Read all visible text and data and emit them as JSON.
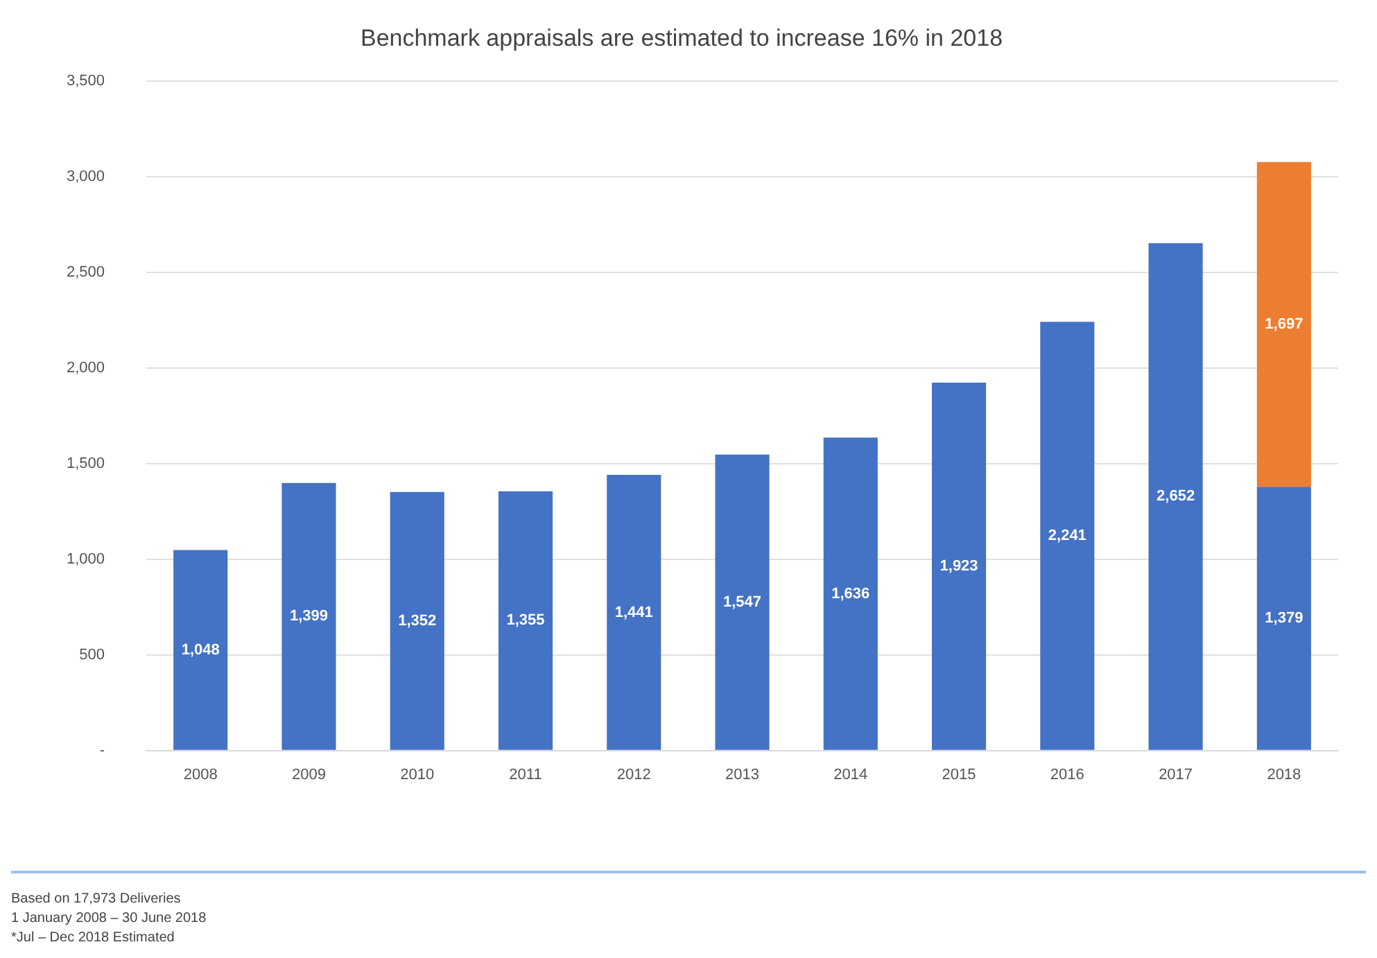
{
  "chart_data": {
    "type": "bar",
    "title": "Benchmark appraisals are estimated to increase 16% in 2018",
    "categories": [
      "2008",
      "2009",
      "2010",
      "2011",
      "2012",
      "2013",
      "2014",
      "2015",
      "2016",
      "2017",
      "2018"
    ],
    "series": [
      {
        "color": "#4472c4",
        "values": [
          1048,
          1399,
          1352,
          1355,
          1441,
          1547,
          1636,
          1923,
          2241,
          2652,
          1379
        ],
        "value_labels": [
          "1,048",
          "1,399",
          "1,352",
          "1,355",
          "1,441",
          "1,547",
          "1,636",
          "1,923",
          "2,241",
          "2,652",
          "1,379"
        ]
      },
      {
        "color": "#ed7d31",
        "values": [
          null,
          null,
          null,
          null,
          null,
          null,
          null,
          null,
          null,
          null,
          1697
        ],
        "value_labels": [
          null,
          null,
          null,
          null,
          null,
          null,
          null,
          null,
          null,
          null,
          "1,697"
        ]
      }
    ],
    "stacked": true,
    "grid": "y",
    "legend": false,
    "ylim": [
      0,
      3500
    ],
    "yticks": [
      {
        "value": 0,
        "label": "-"
      },
      {
        "value": 500,
        "label": "500"
      },
      {
        "value": 1000,
        "label": "1,000"
      },
      {
        "value": 1500,
        "label": "1,500"
      },
      {
        "value": 2000,
        "label": "2,000"
      },
      {
        "value": 2500,
        "label": "2,500"
      },
      {
        "value": 3000,
        "label": "3,000"
      },
      {
        "value": 3500,
        "label": "3,500"
      }
    ],
    "annotations": [
      "Based on 17,973 Deliveries",
      "1 January 2008 – 30 June 2018",
      "*Jul – Dec 2018 Estimated"
    ]
  }
}
